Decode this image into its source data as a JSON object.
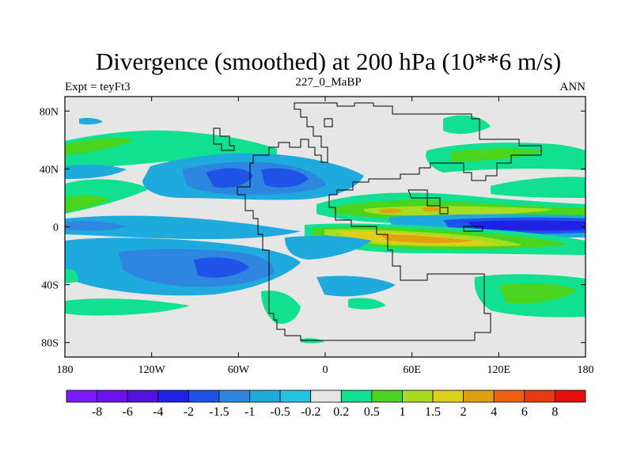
{
  "chart_data": {
    "type": "heatmap",
    "title": "Divergence (smoothed) at 200 hPa (10**6 m/s)",
    "subtitle_left": "Expt = teyFt3",
    "subtitle_center": "227_0_MaBP",
    "subtitle_right": "ANN",
    "x_range": [
      -180,
      180
    ],
    "y_range": [
      -90,
      90
    ],
    "x_ticks": [
      {
        "value": -180,
        "label": "180"
      },
      {
        "value": -120,
        "label": "120W"
      },
      {
        "value": -60,
        "label": "60W"
      },
      {
        "value": 0,
        "label": "0"
      },
      {
        "value": 60,
        "label": "60E"
      },
      {
        "value": 120,
        "label": "120E"
      },
      {
        "value": 180,
        "label": "180"
      }
    ],
    "y_ticks": [
      {
        "value": 80,
        "label": "80N"
      },
      {
        "value": 40,
        "label": "40N"
      },
      {
        "value": 0,
        "label": "0"
      },
      {
        "value": -40,
        "label": "40S"
      },
      {
        "value": -80,
        "label": "80S"
      }
    ],
    "colorbar": {
      "levels": [
        "-8",
        "-6",
        "-4",
        "-2",
        "-1.5",
        "-1",
        "-0.5",
        "-0.2",
        "0.2",
        "0.5",
        "1",
        "1.5",
        "2",
        "4",
        "6",
        "8"
      ],
      "colors": [
        "#7a1aff",
        "#6a13ee",
        "#5511e0",
        "#2020e6",
        "#1f52e6",
        "#2e86e0",
        "#1eaadc",
        "#27c2e2",
        "#e6e6e6",
        "#10e090",
        "#4ad41e",
        "#a8dc20",
        "#dcd018",
        "#e0a010",
        "#ec6010",
        "#e63a10",
        "#e60d0d"
      ]
    },
    "fields": [
      {
        "lon": 150,
        "lat": 0,
        "value": -4
      },
      {
        "lon": 110,
        "lat": 0,
        "value": -2
      },
      {
        "lon": 60,
        "lat": -8,
        "value": 2
      },
      {
        "lon": 20,
        "lat": -5,
        "value": 1.5
      },
      {
        "lon": 70,
        "lat": 12,
        "value": 1.5
      },
      {
        "lon": -60,
        "lat": -25,
        "value": -1.5
      },
      {
        "lon": -65,
        "lat": 35,
        "value": -1.5
      },
      {
        "lon": -120,
        "lat": 30,
        "value": -1
      },
      {
        "lon": -160,
        "lat": 55,
        "value": 0.5
      },
      {
        "lon": 130,
        "lat": 45,
        "value": 0.5
      },
      {
        "lon": 140,
        "lat": -40,
        "value": 0.5
      },
      {
        "lon": -130,
        "lat": -40,
        "value": 0.5
      },
      {
        "lon": -40,
        "lat": -55,
        "value": 0.5
      }
    ]
  }
}
